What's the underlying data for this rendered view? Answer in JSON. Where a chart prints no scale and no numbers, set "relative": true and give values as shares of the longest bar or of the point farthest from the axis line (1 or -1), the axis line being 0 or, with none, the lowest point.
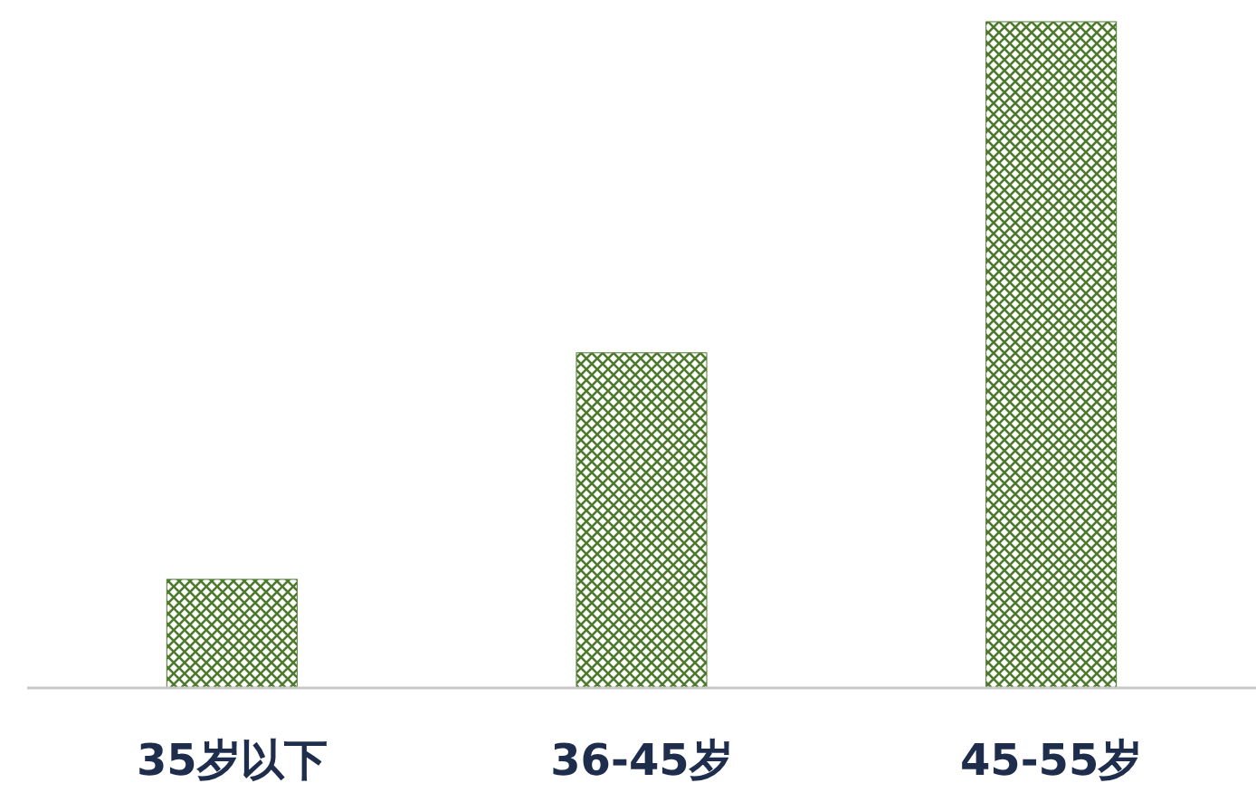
{
  "chart_data": {
    "type": "bar",
    "relative": true,
    "categories": [
      "35岁以下",
      "36-45岁",
      "45-55岁"
    ],
    "values": [
      0.163,
      0.503,
      1
    ],
    "color": "#4e7a2e"
  }
}
